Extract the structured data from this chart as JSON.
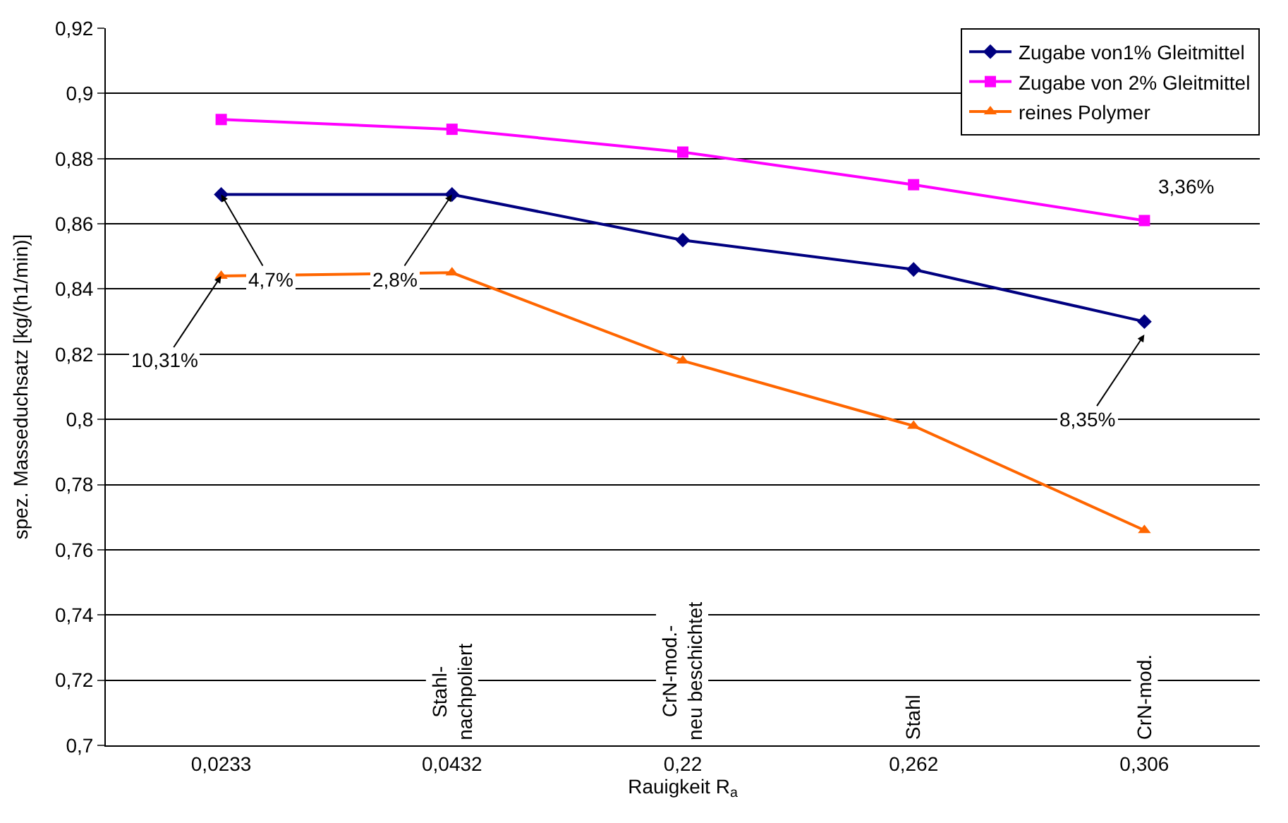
{
  "chart_data": {
    "type": "line",
    "xlabel": "Rauigkeit R$_{a}$",
    "ylabel": "spez. Masseduchsatz [kg/(h1/min)]",
    "categories": [
      "0,0233",
      "0,0432",
      "0,22",
      "0,262",
      "0,306"
    ],
    "series": [
      {
        "name": "Zugabe von1% Gleitmittel",
        "color": "#000080",
        "marker": "diamond",
        "values": [
          0.869,
          0.869,
          0.855,
          0.846,
          0.83
        ]
      },
      {
        "name": "Zugabe von 2% Gleitmittel",
        "color": "#ff00ff",
        "marker": "square",
        "values": [
          0.892,
          0.889,
          0.882,
          0.872,
          0.861
        ]
      },
      {
        "name": "reines Polymer",
        "color": "#ff6600",
        "marker": "triangle",
        "values": [
          0.844,
          0.845,
          0.818,
          0.798,
          0.766
        ]
      }
    ],
    "ylim": [
      0.7,
      0.92
    ],
    "yticks": [
      {
        "value": 0.7,
        "label": "0,7"
      },
      {
        "value": 0.72,
        "label": "0,72"
      },
      {
        "value": 0.74,
        "label": "0,74"
      },
      {
        "value": 0.76,
        "label": "0,76"
      },
      {
        "value": 0.78,
        "label": "0,78"
      },
      {
        "value": 0.8,
        "label": "0,8"
      },
      {
        "value": 0.82,
        "label": "0,82"
      },
      {
        "value": 0.84,
        "label": "0,84"
      },
      {
        "value": 0.86,
        "label": "0,86"
      },
      {
        "value": 0.88,
        "label": "0,88"
      },
      {
        "value": 0.9,
        "label": "0,9"
      },
      {
        "value": 0.92,
        "label": "0,92"
      }
    ],
    "grid": "y",
    "legend": "top right",
    "line_style": "solid",
    "annotations": [
      {
        "text": "10,31%",
        "x": "0,0233",
        "y": 0.844
      },
      {
        "text": "4,7%",
        "x": "0,0233",
        "y": 0.869
      },
      {
        "text": "2,8%",
        "x": "0,0432",
        "y": 0.869
      },
      "3,36%",
      {
        "text": "8,35%",
        "x": "0,306",
        "y": 0.826
      },
      "Stahl-\nnachpoliert",
      "CrN-mod.-\nneu beschichtet",
      "Stahl",
      "CrN-mod."
    ]
  }
}
